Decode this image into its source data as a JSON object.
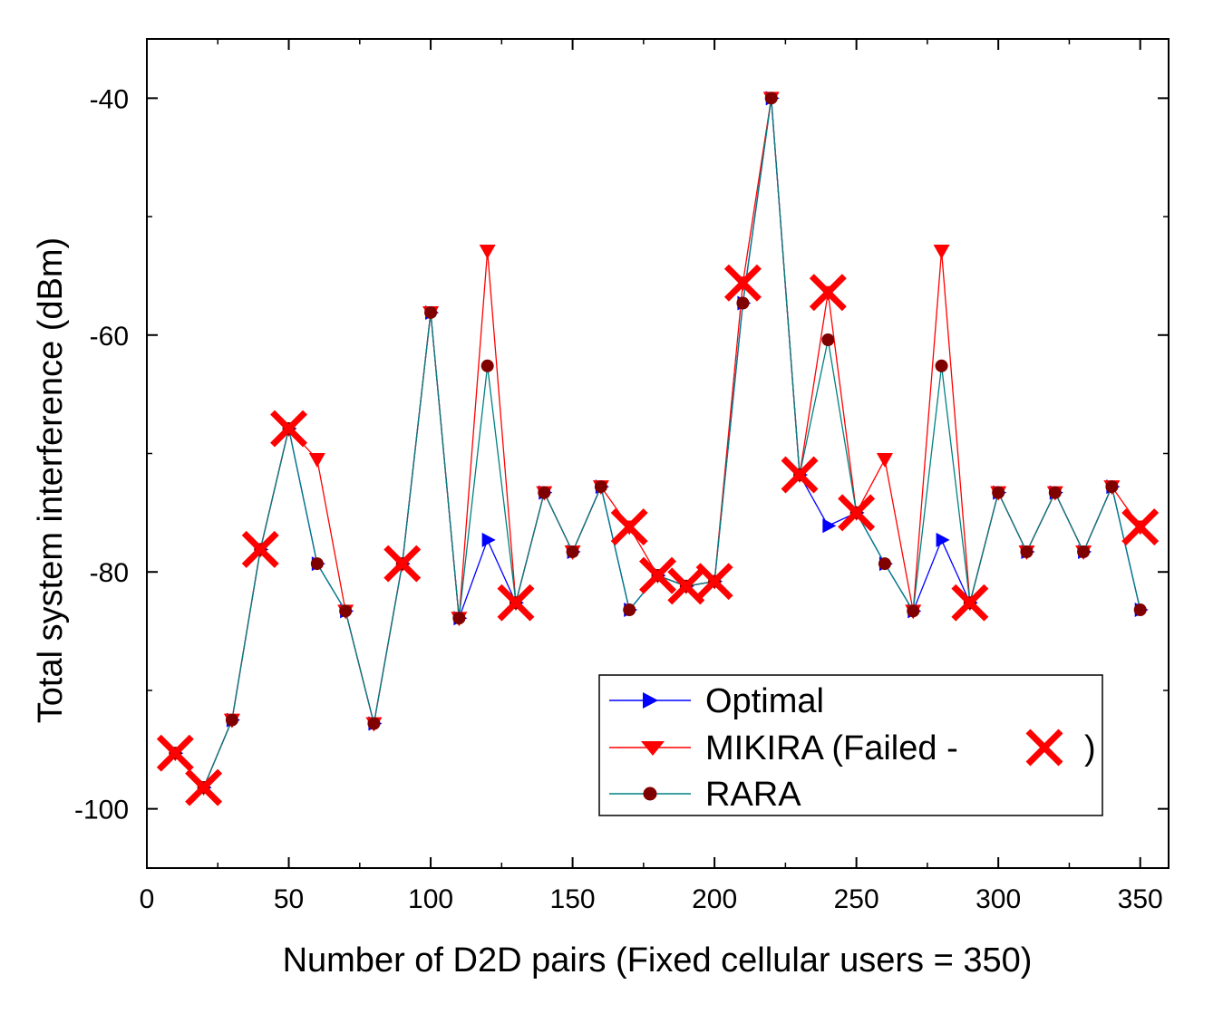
{
  "chart_data": {
    "type": "line",
    "xlabel": "Number of D2D pairs (Fixed cellular users = 350)",
    "ylabel": "Total system interference (dBm)",
    "xlim": [
      0,
      360
    ],
    "ylim": [
      -105,
      -35
    ],
    "xticks": [
      0,
      50,
      100,
      150,
      200,
      250,
      300,
      350
    ],
    "yticks": [
      -40,
      -60,
      -80,
      -100
    ],
    "x": [
      10,
      20,
      30,
      40,
      50,
      60,
      70,
      80,
      90,
      100,
      110,
      120,
      130,
      140,
      150,
      160,
      170,
      180,
      190,
      200,
      210,
      220,
      230,
      240,
      250,
      260,
      270,
      280,
      290,
      300,
      310,
      320,
      330,
      340,
      350
    ],
    "series": [
      {
        "name": "Optimal",
        "color": "#0000ff",
        "marker": "triangle-right",
        "values": [
          -95.3,
          -98.2,
          -92.5,
          -78.1,
          -67.9,
          -79.3,
          -83.3,
          -92.8,
          -79.3,
          -58.1,
          -83.9,
          -77.3,
          -82.6,
          -73.3,
          -78.3,
          -72.8,
          -83.2,
          -80.3,
          -81.2,
          -80.8,
          -57.3,
          -40.0,
          -71.8,
          -76.1,
          -75.0,
          -79.3,
          -83.3,
          -77.3,
          -82.6,
          -73.3,
          -78.3,
          -73.3,
          -78.3,
          -72.8,
          -83.2
        ]
      },
      {
        "name": "MIKIRA (Failed -",
        "name_suffix": ")",
        "color": "#ff0000",
        "marker": "triangle-down",
        "values": [
          -95.3,
          -98.2,
          -92.5,
          -78.1,
          -67.9,
          -70.5,
          -83.3,
          -92.8,
          -79.3,
          -58.1,
          -83.9,
          -52.9,
          -82.6,
          -73.3,
          -78.3,
          -72.8,
          -76.2,
          -80.3,
          -81.2,
          -80.8,
          -55.6,
          -40.0,
          -71.8,
          -56.4,
          -75.0,
          -70.5,
          -83.3,
          -52.9,
          -82.6,
          -73.3,
          -78.3,
          -73.3,
          -78.3,
          -72.8,
          -76.2
        ]
      },
      {
        "name": "RARA",
        "color": "#008080",
        "marker": "circle",
        "marker_color": "#800000",
        "values": [
          -95.3,
          -98.2,
          -92.5,
          -78.1,
          -67.9,
          -79.3,
          -83.3,
          -92.8,
          -79.3,
          -58.1,
          -83.9,
          -62.6,
          -82.6,
          -73.3,
          -78.3,
          -72.8,
          -83.2,
          -80.3,
          -81.2,
          -80.8,
          -57.3,
          -40.0,
          -71.8,
          -60.4,
          -75.0,
          -79.3,
          -83.3,
          -62.6,
          -82.6,
          -73.3,
          -78.3,
          -73.3,
          -78.3,
          -72.8,
          -83.2
        ]
      }
    ],
    "failed_markers": {
      "series": "MIKIRA (Failed -",
      "symbol": "X",
      "color": "#ff0000",
      "points": [
        [
          10,
          -95.3
        ],
        [
          20,
          -98.2
        ],
        [
          40,
          -78.1
        ],
        [
          50,
          -67.9
        ],
        [
          90,
          -79.3
        ],
        [
          130,
          -82.6
        ],
        [
          170,
          -76.2
        ],
        [
          180,
          -80.3
        ],
        [
          190,
          -81.2
        ],
        [
          200,
          -80.8
        ],
        [
          210,
          -55.6
        ],
        [
          230,
          -71.8
        ],
        [
          240,
          -56.4
        ],
        [
          250,
          -75.0
        ],
        [
          290,
          -82.6
        ],
        [
          350,
          -76.2
        ]
      ]
    },
    "legend": {
      "placement": "bottom-right"
    }
  }
}
